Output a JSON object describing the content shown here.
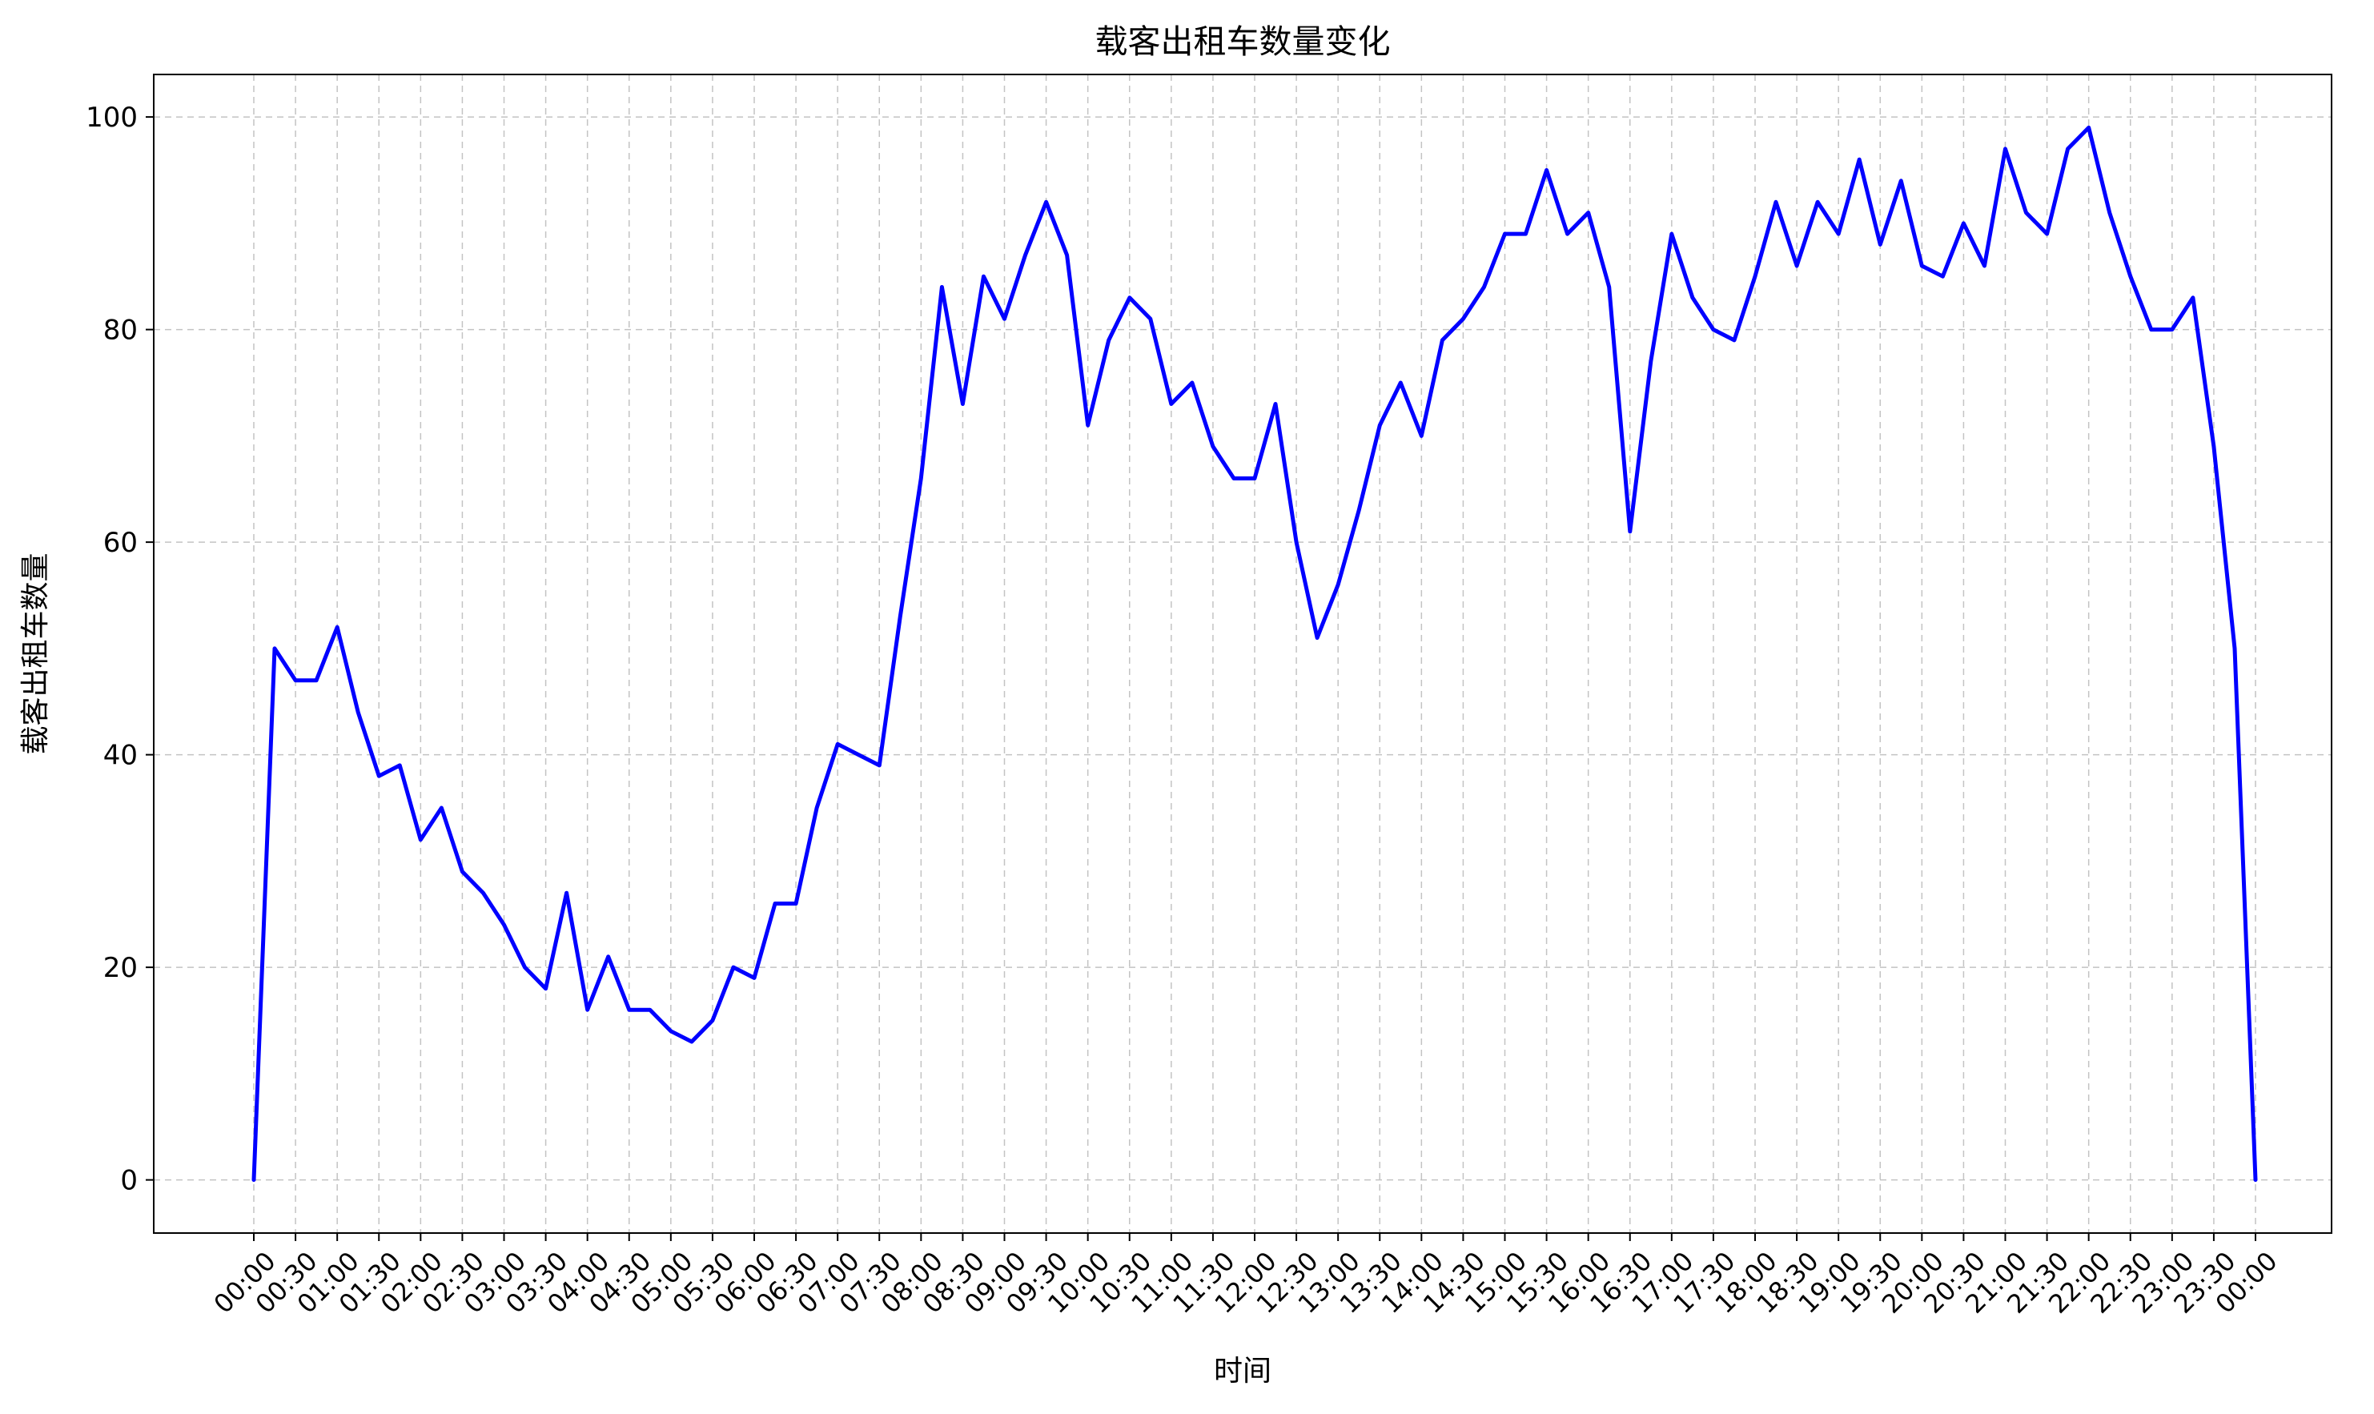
{
  "chart_data": {
    "type": "line",
    "title": "载客出租车数量变化",
    "xlabel": "时间",
    "ylabel": "载客出租车数量",
    "ylim": [
      -5,
      104
    ],
    "y_ticks": [
      0,
      20,
      40,
      60,
      80,
      100
    ],
    "x_tick_labels": [
      "00:00",
      "00:30",
      "01:00",
      "01:30",
      "02:00",
      "02:30",
      "03:00",
      "03:30",
      "04:00",
      "04:30",
      "05:00",
      "05:30",
      "06:00",
      "06:30",
      "07:00",
      "07:30",
      "08:00",
      "08:30",
      "09:00",
      "09:30",
      "10:00",
      "10:30",
      "11:00",
      "11:30",
      "12:00",
      "12:30",
      "13:00",
      "13:30",
      "14:00",
      "14:30",
      "15:00",
      "15:30",
      "16:00",
      "16:30",
      "17:00",
      "17:30",
      "18:00",
      "18:30",
      "19:00",
      "19:30",
      "20:00",
      "20:30",
      "21:00",
      "21:30",
      "22:00",
      "22:30",
      "23:00",
      "23:30",
      "00:00"
    ],
    "x_label_rotation": 45,
    "grid": true,
    "grid_style": "dashed",
    "points_per_interval": 2,
    "series": [
      {
        "color": "#0000ff",
        "values": [
          0,
          50,
          47,
          47,
          52,
          44,
          38,
          39,
          32,
          35,
          29,
          27,
          24,
          20,
          18,
          27,
          16,
          21,
          16,
          16,
          14,
          13,
          15,
          20,
          19,
          26,
          26,
          35,
          41,
          40,
          39,
          53,
          66,
          84,
          73,
          85,
          81,
          87,
          92,
          87,
          71,
          79,
          83,
          81,
          73,
          75,
          69,
          66,
          66,
          73,
          60,
          51,
          56,
          63,
          71,
          75,
          70,
          79,
          81,
          84,
          89,
          89,
          95,
          89,
          91,
          84,
          61,
          77,
          89,
          83,
          80,
          79,
          85,
          92,
          86,
          92,
          89,
          96,
          88,
          94,
          86,
          85,
          90,
          86,
          97,
          91,
          89,
          97,
          99,
          91,
          85,
          80,
          80,
          83,
          69,
          50,
          0
        ]
      }
    ]
  }
}
